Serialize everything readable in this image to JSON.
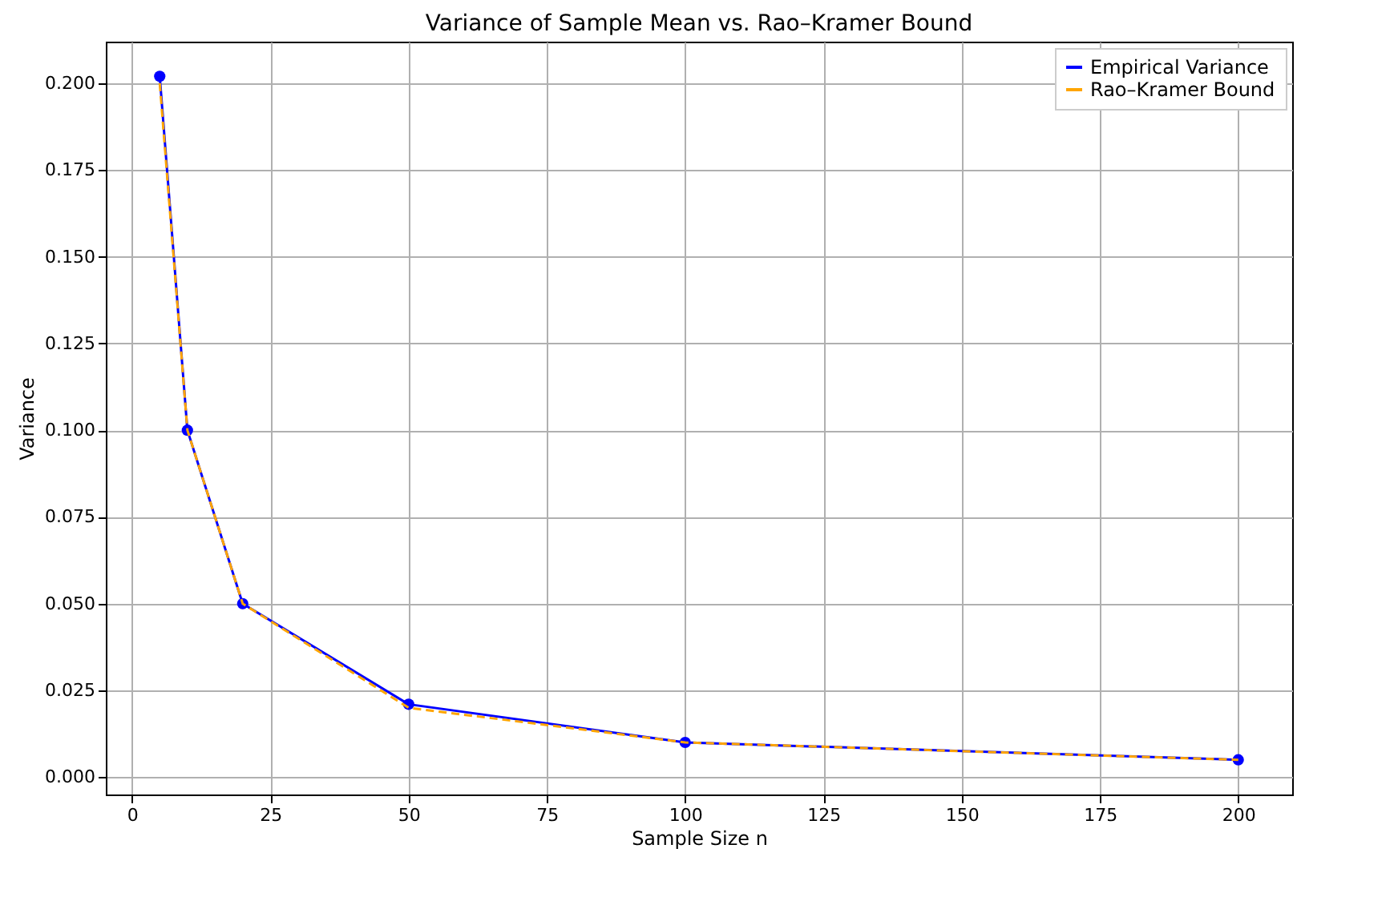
{
  "chart_data": {
    "type": "line",
    "title": "Variance of Sample Mean vs. Rao–Kramer Bound",
    "xlabel": "Sample Size n",
    "ylabel": "Variance",
    "x": [
      5,
      10,
      20,
      50,
      100,
      200
    ],
    "series": [
      {
        "name": "Empirical Variance",
        "color": "#0000ff",
        "values": [
          0.202,
          0.1,
          0.05,
          0.021,
          0.01,
          0.005
        ],
        "marker": "circle",
        "line_style": "solid"
      },
      {
        "name": "Rao–Kramer Bound",
        "color": "#ffa500",
        "values": [
          0.2,
          0.1,
          0.05,
          0.02,
          0.01,
          0.005
        ],
        "marker": "none",
        "line_style": "dashed"
      }
    ],
    "xlim": [
      -4.75,
      209.75
    ],
    "xticks": [
      0,
      25,
      50,
      75,
      100,
      125,
      150,
      175,
      200
    ],
    "ylim": [
      -0.005,
      0.212
    ],
    "yticks": [
      {
        "value": 0,
        "label": "0.000"
      },
      {
        "value": 0.025,
        "label": "0.025"
      },
      {
        "value": 0.05,
        "label": "0.050"
      },
      {
        "value": 0.075,
        "label": "0.075"
      },
      {
        "value": 0.1,
        "label": "0.100"
      },
      {
        "value": 0.125,
        "label": "0.125"
      },
      {
        "value": 0.15,
        "label": "0.150"
      },
      {
        "value": 0.175,
        "label": "0.175"
      },
      {
        "value": 0.2,
        "label": "0.200"
      }
    ],
    "grid": true,
    "legend": "top right"
  }
}
